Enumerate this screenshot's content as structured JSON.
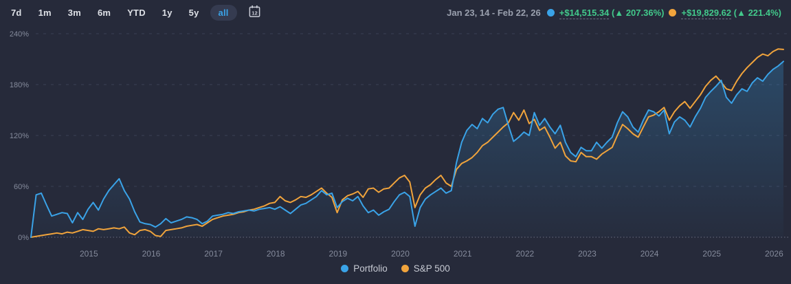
{
  "toolbar": {
    "ranges": [
      {
        "label": "7d",
        "active": false
      },
      {
        "label": "1m",
        "active": false
      },
      {
        "label": "3m",
        "active": false
      },
      {
        "label": "6m",
        "active": false
      },
      {
        "label": "YTD",
        "active": false
      },
      {
        "label": "1y",
        "active": false
      },
      {
        "label": "5y",
        "active": false
      },
      {
        "label": "all",
        "active": true
      }
    ],
    "active_range": "all",
    "calendar_icon": "calendar-12-icon",
    "calendar_label": "12"
  },
  "header": {
    "date_range": "Jan 23, 14 - Feb 22, 26",
    "stats": [
      {
        "series": "Portfolio",
        "dot_color": "#3aa3e8",
        "value": "+$14,515.34",
        "change": "(▲ 207.36%)"
      },
      {
        "series": "S&P 500",
        "dot_color": "#f1a43c",
        "value": "+$19,829.62",
        "change": "(▲ 221.4%)"
      }
    ],
    "gain_color": "#42c98b"
  },
  "legend": [
    {
      "label": "Portfolio",
      "color": "#3aa3e8"
    },
    {
      "label": "S&P 500",
      "color": "#f1a43c"
    }
  ],
  "colors": {
    "background": "#262a3a",
    "portfolio_blue": "#3aa3e8",
    "sp500_orange": "#f1a43c",
    "gain_green": "#42c98b",
    "axis_text": "#858b9c",
    "gridline": "#3b4054"
  },
  "chart_data": {
    "type": "line",
    "title": "Portfolio performance vs S&P 500, cumulative return %",
    "xlabel": "",
    "ylabel": "",
    "x_unit": "monthly points from Jan 2014 to Feb 2026",
    "x_domain": [
      2014.07,
      2026.15
    ],
    "ylim": [
      0,
      240
    ],
    "grid": "horizontal-dashed",
    "legend_position": "bottom-center",
    "y_ticks": [
      {
        "value": 240,
        "label": "240%"
      },
      {
        "value": 180,
        "label": "180%"
      },
      {
        "value": 120,
        "label": "120%"
      },
      {
        "value": 60,
        "label": "60%"
      },
      {
        "value": 0,
        "label": "0%"
      }
    ],
    "x_ticks": [
      {
        "value": 2015,
        "label": "2015"
      },
      {
        "value": 2016,
        "label": "2016"
      },
      {
        "value": 2017,
        "label": "2017"
      },
      {
        "value": 2018,
        "label": "2018"
      },
      {
        "value": 2019,
        "label": "2019"
      },
      {
        "value": 2020,
        "label": "2020"
      },
      {
        "value": 2021,
        "label": "2021"
      },
      {
        "value": 2022,
        "label": "2022"
      },
      {
        "value": 2023,
        "label": "2023"
      },
      {
        "value": 2024,
        "label": "2024"
      },
      {
        "value": 2025,
        "label": "2025"
      },
      {
        "value": 2026,
        "label": "2026"
      }
    ],
    "series": [
      {
        "name": "Portfolio",
        "color": "#3aa3e8",
        "fill": true,
        "final_value_pct": 207.36,
        "final_value_abs": "+$14,515.34",
        "values": [
          0,
          50,
          52,
          38,
          25,
          27,
          29,
          28,
          17,
          29,
          21,
          33,
          41,
          32,
          45,
          55,
          62,
          69,
          55,
          45,
          30,
          18,
          16,
          15,
          12,
          16,
          22,
          17,
          19,
          21,
          24,
          23,
          21,
          16,
          19,
          25,
          26,
          27,
          29,
          28,
          30,
          31,
          32,
          31,
          33,
          34,
          35,
          33,
          36,
          32,
          28,
          33,
          38,
          40,
          44,
          48,
          55,
          50,
          52,
          35,
          42,
          46,
          43,
          48,
          37,
          29,
          32,
          26,
          30,
          33,
          42,
          50,
          53,
          48,
          13,
          35,
          45,
          50,
          54,
          58,
          52,
          55,
          88,
          112,
          126,
          133,
          128,
          140,
          135,
          145,
          151,
          153,
          132,
          113,
          118,
          124,
          120,
          147,
          132,
          140,
          130,
          122,
          132,
          112,
          100,
          95,
          106,
          102,
          102,
          112,
          105,
          112,
          118,
          135,
          148,
          142,
          130,
          124,
          138,
          150,
          148,
          143,
          150,
          122,
          136,
          142,
          138,
          130,
          142,
          152,
          165,
          172,
          178,
          185,
          165,
          158,
          168,
          175,
          172,
          182,
          188,
          184,
          192,
          198,
          202,
          207.36
        ]
      },
      {
        "name": "S&P 500",
        "color": "#f1a43c",
        "fill": false,
        "final_value_pct": 221.4,
        "final_value_abs": "+$19,829.62",
        "values": [
          0,
          1,
          2,
          3,
          4,
          5,
          4,
          6,
          5,
          7,
          9,
          8,
          7,
          10,
          9,
          10,
          11,
          10,
          12,
          5,
          3,
          8,
          9,
          7,
          2,
          1,
          8,
          9,
          10,
          11,
          13,
          14,
          15,
          13,
          17,
          21,
          23,
          25,
          26,
          27,
          29,
          30,
          32,
          33,
          35,
          37,
          40,
          41,
          48,
          43,
          41,
          44,
          48,
          47,
          50,
          54,
          58,
          52,
          47,
          29,
          44,
          49,
          51,
          54,
          47,
          57,
          58,
          53,
          57,
          58,
          64,
          70,
          73,
          65,
          35,
          50,
          58,
          62,
          68,
          73,
          64,
          60,
          80,
          87,
          90,
          94,
          100,
          108,
          112,
          118,
          124,
          130,
          135,
          147,
          138,
          150,
          134,
          139,
          126,
          130,
          118,
          105,
          112,
          96,
          90,
          89,
          100,
          95,
          95,
          92,
          98,
          102,
          106,
          120,
          133,
          128,
          122,
          118,
          130,
          142,
          144,
          148,
          153,
          138,
          148,
          155,
          160,
          152,
          160,
          168,
          178,
          185,
          190,
          183,
          175,
          173,
          184,
          193,
          200,
          206,
          212,
          216,
          214,
          219,
          222,
          221.4
        ]
      }
    ]
  }
}
